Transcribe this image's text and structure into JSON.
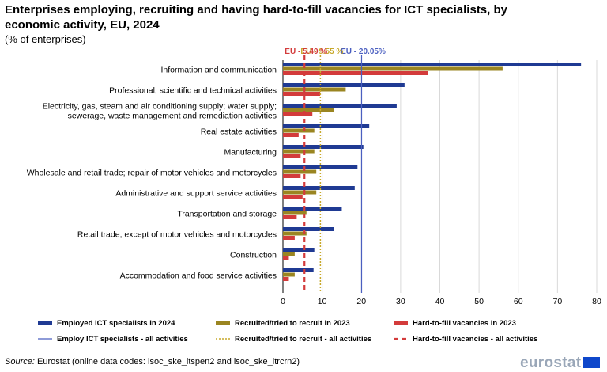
{
  "title": "Enterprises employing, recruiting and having hard-to-fill vacancies for ICT specialists, by economic activity, EU, 2024",
  "subtitle": "(% of enterprises)",
  "source_label": "Source:",
  "source_text": "Eurostat (online data codes: isoc_ske_itspen2 and isoc_ske_itrcrn2)",
  "logo_text": "eurostat",
  "colors": {
    "employed": "#1f3a93",
    "recruited": "#9a8521",
    "hardfill": "#d33b3b",
    "ref_employ": "#4b5fc0",
    "ref_recruit": "#c7a82a",
    "ref_hard": "#d33b3b"
  },
  "chart_data": {
    "type": "bar",
    "orientation": "horizontal",
    "categories": [
      "Information and communication",
      "Professional, scientific and technical activities",
      "Electricity, gas, steam and air conditioning supply; water supply;\nsewerage, waste management and remediation activities",
      "Real estate activities",
      "Manufacturing",
      "Wholesale and retail trade; repair of motor vehicles and motorcycles",
      "Administrative and support service activities",
      "Transportation and storage",
      "Retail trade, except of motor vehicles and motorcycles",
      "Construction",
      "Accommodation and food service activities"
    ],
    "series": [
      {
        "name": "Employed ICT specialists in 2024",
        "values": [
          76,
          31,
          29,
          22,
          20.5,
          19,
          18.3,
          15,
          13,
          8,
          7.8
        ]
      },
      {
        "name": "Recruited/tried to recruit in 2023",
        "values": [
          56,
          16,
          13,
          8,
          8,
          8.5,
          8.5,
          6,
          6,
          3,
          3
        ]
      },
      {
        "name": "Hard-to-fill vacancies in 2023",
        "values": [
          37,
          9.5,
          7.5,
          4,
          4.5,
          4.5,
          5,
          3.5,
          3,
          1.5,
          1.5
        ]
      }
    ],
    "reference_lines": [
      {
        "name": "Employ ICT specialists - all activities",
        "value": 20.05,
        "label": "EU - 20.05%",
        "style": "solid"
      },
      {
        "name": "Recruited/tried to recruit - all activities",
        "value": 9.55,
        "label": "EU - 9.55 %",
        "style": "dotted"
      },
      {
        "name": "Hard-to-fill vacancies - all activities",
        "value": 5.49,
        "label": "EU - 5.49 %",
        "style": "dashed"
      }
    ],
    "xlim": [
      0,
      80
    ],
    "xticks": [
      0,
      10,
      20,
      30,
      40,
      50,
      60,
      70,
      80
    ],
    "grid": true,
    "legend_position": "bottom"
  }
}
